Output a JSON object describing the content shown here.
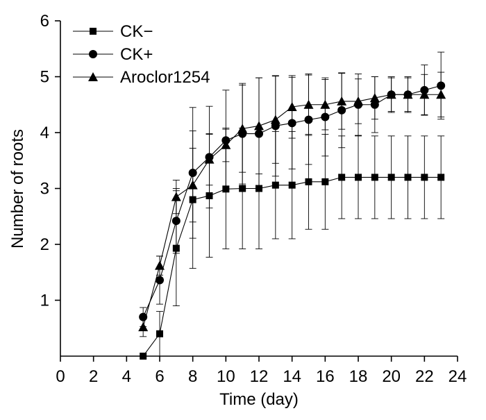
{
  "chart_data": {
    "type": "line",
    "xlabel": "Time (day)",
    "ylabel": "Number of roots",
    "xlim": [
      0,
      24
    ],
    "ylim": [
      0,
      6
    ],
    "x_ticks": [
      "0",
      "2",
      "4",
      "6",
      "8",
      "10",
      "12",
      "14",
      "16",
      "18",
      "20",
      "22",
      "24"
    ],
    "y_ticks": [
      "1",
      "2",
      "3",
      "4",
      "5",
      "6"
    ],
    "legend_position": "top-left",
    "grid": false,
    "x": [
      5,
      6,
      7,
      8,
      9,
      10,
      11,
      12,
      13,
      14,
      15,
      16,
      17,
      18,
      19,
      20,
      21,
      22,
      23
    ],
    "series": [
      {
        "name": "CK−",
        "marker": "square",
        "values": [
          0.0,
          0.4,
          1.93,
          2.8,
          2.87,
          2.99,
          3.0,
          3.0,
          3.06,
          3.06,
          3.12,
          3.12,
          3.2,
          3.2,
          3.2,
          3.2,
          3.2,
          3.2,
          3.2
        ],
        "errors": [
          0.0,
          0.4,
          1.03,
          1.23,
          1.1,
          1.07,
          1.08,
          1.08,
          0.96,
          0.96,
          0.85,
          0.85,
          0.74,
          0.74,
          0.74,
          0.74,
          0.74,
          0.74,
          0.74
        ]
      },
      {
        "name": "CK+",
        "marker": "circle",
        "values": [
          0.7,
          1.36,
          2.42,
          3.28,
          3.56,
          3.86,
          3.98,
          3.98,
          4.12,
          4.17,
          4.23,
          4.28,
          4.4,
          4.5,
          4.5,
          4.68,
          4.68,
          4.76,
          4.84
        ],
        "errors": [
          0.17,
          0.43,
          0.58,
          1.17,
          0.91,
          0.9,
          0.9,
          1.0,
          0.9,
          0.82,
          0.8,
          0.7,
          0.67,
          0.55,
          0.5,
          0.32,
          0.32,
          0.45,
          0.6
        ]
      },
      {
        "name": "Aroclor1254",
        "marker": "triangle",
        "values": [
          0.52,
          1.62,
          2.85,
          3.06,
          3.52,
          3.78,
          4.07,
          4.12,
          4.23,
          4.46,
          4.5,
          4.5,
          4.56,
          4.56,
          4.62,
          4.68,
          4.68,
          4.68,
          4.68
        ],
        "errors": [
          0.17,
          0.17,
          0.3,
          0.66,
          0.46,
          0.3,
          0.78,
          0.86,
          0.78,
          0.56,
          0.55,
          0.45,
          0.5,
          0.4,
          0.38,
          0.3,
          0.3,
          0.36,
          0.4
        ]
      }
    ]
  }
}
